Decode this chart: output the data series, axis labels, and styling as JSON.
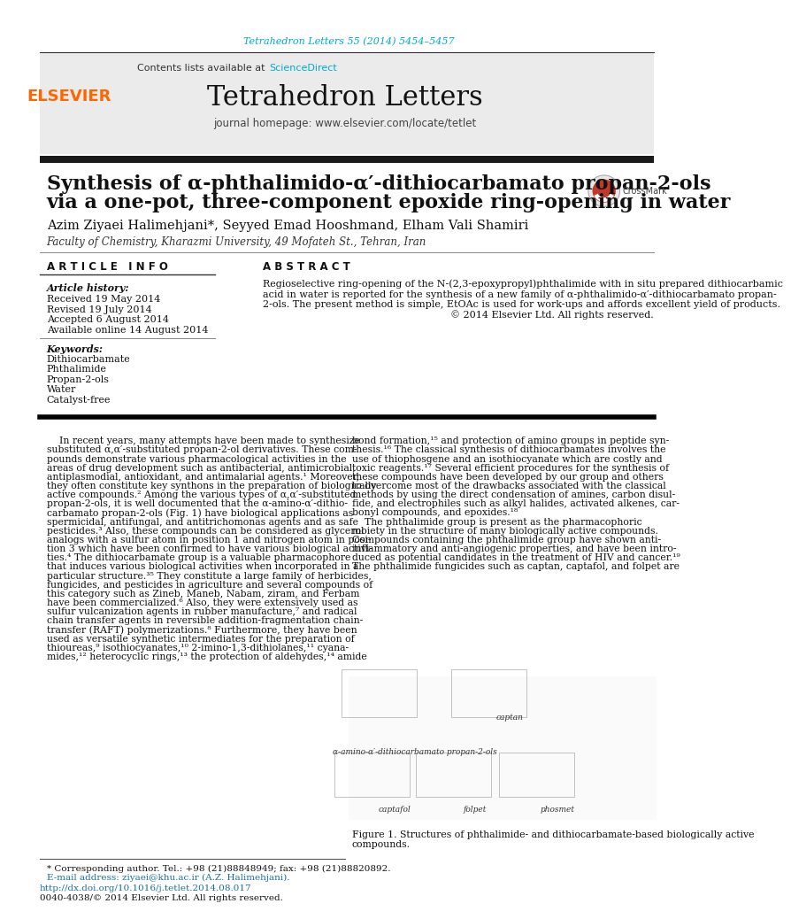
{
  "page_bg": "#ffffff",
  "header_journal_ref": "Tetrahedron Letters 55 (2014) 5454–5457",
  "header_journal_ref_color": "#00aacc",
  "journal_banner_bg": "#e8e8e8",
  "contents_text": "Contents lists available at ",
  "sciencedirect_text": "ScienceDirect",
  "sciencedirect_color": "#00aacc",
  "journal_name": "Tetrahedron Letters",
  "journal_homepage": "journal homepage: www.elsevier.com/locate/tetlet",
  "elsevier_color": "#ff6600",
  "thick_bar_color": "#1a1a1a",
  "article_title_line1": "Synthesis of α-phthalimido-α′-dithiocarbamato propan-2-ols",
  "article_title_line2": "via a one-pot, three-component epoxide ring-opening in water",
  "authors": "Azim Ziyaei Halimehjani*, Seyyed Emad Hooshmand, Elham Vali Shamiri",
  "affiliation": "Faculty of Chemistry, Kharazmi University, 49 Mofateh St., Tehran, Iran",
  "article_info_header": "A R T I C L E   I N F O",
  "abstract_header": "A B S T R A C T",
  "article_history_label": "Article history:",
  "received": "Received 19 May 2014",
  "revised": "Revised 19 July 2014",
  "accepted": "Accepted 6 August 2014",
  "available": "Available online 14 August 2014",
  "keywords_label": "Keywords:",
  "keywords": [
    "Dithiocarbamate",
    "Phthalimide",
    "Propan-2-ols",
    "Water",
    "Catalyst-free"
  ],
  "abstract_lines": [
    "Regioselective ring-opening of the N-(2,3-epoxypropyl)phthalimide with in situ prepared dithiocarbamic",
    "acid in water is reported for the synthesis of a new family of α-phthalimido-α′-dithiocarbamato propan-",
    "2-ols. The present method is simple, EtOAc is used for work-ups and affords excellent yield of products.",
    "© 2014 Elsevier Ltd. All rights reserved."
  ],
  "col1_lines": [
    "    In recent years, many attempts have been made to synthesize",
    "substituted α,α′-substituted propan-2-ol derivatives. These com-",
    "pounds demonstrate various pharmacological activities in the",
    "areas of drug development such as antibacterial, antimicrobial,",
    "antiplasmodial, antioxidant, and antimalarial agents.¹ Moreover,",
    "they often constitute key synthons in the preparation of biologically",
    "active compounds.² Among the various types of α,α′-substituted",
    "propan-2-ols, it is well documented that the α-amino-α′-dithio-",
    "carbamato propan-2-ols (Fig. 1) have biological applications as",
    "spermicidal, antifungal, and antitrichomonas agents and as safe",
    "pesticides.³ Also, these compounds can be considered as glycerol",
    "analogs with a sulfur atom in position 1 and nitrogen atom in posi-",
    "tion 3 which have been confirmed to have various biological activi-",
    "ties.⁴ The dithiocarbamate group is a valuable pharmacophore",
    "that induces various biological activities when incorporated in a",
    "particular structure.³⁵ They constitute a large family of herbicides,",
    "fungicides, and pesticides in agriculture and several compounds of",
    "this category such as Zineb, Maneb, Nabam, ziram, and Ferbam",
    "have been commercialized.⁶ Also, they were extensively used as",
    "sulfur vulcanization agents in rubber manufacture,⁷ and radical",
    "chain transfer agents in reversible addition-fragmentation chain-",
    "transfer (RAFT) polymerizations.⁸ Furthermore, they have been",
    "used as versatile synthetic intermediates for the preparation of",
    "thioureas,⁹ isothiocyanates,¹⁰ 2-imino-1,3-dithiolanes,¹¹ cyana-",
    "mides,¹² heterocyclic rings,¹³ the protection of aldehydes,¹⁴ amide"
  ],
  "col2_lines": [
    "bond formation,¹⁵ and protection of amino groups in peptide syn-",
    "thesis.¹⁶ The classical synthesis of dithiocarbamates involves the",
    "use of thiophosgene and an isothiocyanate which are costly and",
    "toxic reagents.¹⁷ Several efficient procedures for the synthesis of",
    "these compounds have been developed by our group and others",
    "to overcome most of the drawbacks associated with the classical",
    "methods by using the direct condensation of amines, carbon disul-",
    "fide, and electrophiles such as alkyl halides, activated alkenes, car-",
    "bonyl compounds, and epoxides.¹⁸",
    "    The phthalimide group is present as the pharmacophoric",
    "moiety in the structure of many biologically active compounds.",
    "Compounds containing the phthalimide group have shown anti-",
    "inflammatory and anti-angiogenic properties, and have been intro-",
    "duced as potential candidates in the treatment of HIV and cancer.¹⁹",
    "The phthalimide fungicides such as captan, captafol, and folpet are"
  ],
  "footnote_star": "* Corresponding author. Tel.: +98 (21)88848949; fax: +98 (21)88820892.",
  "footnote_email": "E-mail address: ziyaei@khu.ac.ir (A.Z. Halimehjani).",
  "doi_text": "http://dx.doi.org/10.1016/j.tetlet.2014.08.017",
  "issn_text": "0040-4038/© 2014 Elsevier Ltd. All rights reserved.",
  "fig1_caption": "Figure 1. Structures of phthalimide- and dithiocarbamate-based biologically active\ncompounds.",
  "thin_line_color": "#555555",
  "section_divider_color": "#000000",
  "fig_struct_labels": [
    [
      "α-amino-α′-dithiocarbamato propan-2-ols",
      592,
      1090
    ],
    [
      "captan",
      730,
      1040
    ],
    [
      "captafol",
      562,
      1175
    ],
    [
      "folpet",
      680,
      1175
    ],
    [
      "phosmet",
      800,
      1175
    ]
  ]
}
